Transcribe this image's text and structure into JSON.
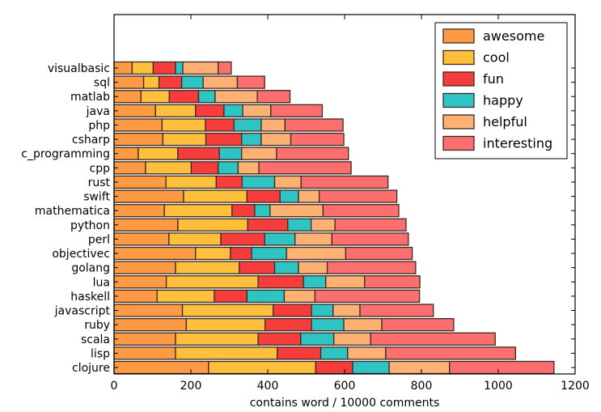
{
  "chart_data": {
    "type": "bar",
    "orientation": "horizontal",
    "stacked": true,
    "title": "",
    "xlabel": "contains word / 10000 comments",
    "ylabel": "",
    "xlim": [
      0,
      1200
    ],
    "xticks": [
      "0",
      "200",
      "400",
      "600",
      "800",
      "1000",
      "1200"
    ],
    "legend_position": "top-right",
    "categories": [
      "visualbasic",
      "sql",
      "matlab",
      "java",
      "php",
      "csharp",
      "c_programming",
      "cpp",
      "rust",
      "swift",
      "mathematica",
      "python",
      "perl",
      "objectivec",
      "golang",
      "lua",
      "haskell",
      "javascript",
      "ruby",
      "scala",
      "lisp",
      "clojure"
    ],
    "series": [
      {
        "name": "awesome",
        "color": "#fd9a43",
        "values": [
          47,
          77,
          70,
          108,
          125,
          127,
          63,
          82,
          135,
          181,
          131,
          166,
          143,
          212,
          160,
          136,
          112,
          178,
          188,
          160,
          160,
          246
        ]
      },
      {
        "name": "cool",
        "color": "#fdbf3c",
        "values": [
          55,
          40,
          74,
          104,
          113,
          112,
          103,
          119,
          131,
          165,
          176,
          182,
          135,
          91,
          166,
          239,
          149,
          236,
          205,
          215,
          265,
          279
        ]
      },
      {
        "name": "fun",
        "color": "#f73c3c",
        "values": [
          58,
          59,
          76,
          74,
          74,
          93,
          108,
          70,
          67,
          86,
          59,
          104,
          114,
          55,
          92,
          118,
          85,
          100,
          121,
          111,
          113,
          96
        ]
      },
      {
        "name": "happy",
        "color": "#2ec4c4",
        "values": [
          19,
          56,
          43,
          49,
          71,
          51,
          58,
          52,
          85,
          48,
          40,
          61,
          79,
          91,
          62,
          58,
          97,
          56,
          84,
          86,
          70,
          95
        ]
      },
      {
        "name": "helpful",
        "color": "#fdb173",
        "values": [
          92,
          89,
          110,
          73,
          62,
          77,
          91,
          54,
          69,
          54,
          138,
          62,
          96,
          154,
          75,
          101,
          80,
          70,
          99,
          96,
          99,
          157
        ]
      },
      {
        "name": "interesting",
        "color": "#fd6e6e",
        "values": [
          34,
          71,
          85,
          134,
          151,
          138,
          187,
          240,
          226,
          202,
          197,
          185,
          199,
          173,
          230,
          144,
          272,
          191,
          187,
          324,
          338,
          272
        ]
      }
    ]
  }
}
